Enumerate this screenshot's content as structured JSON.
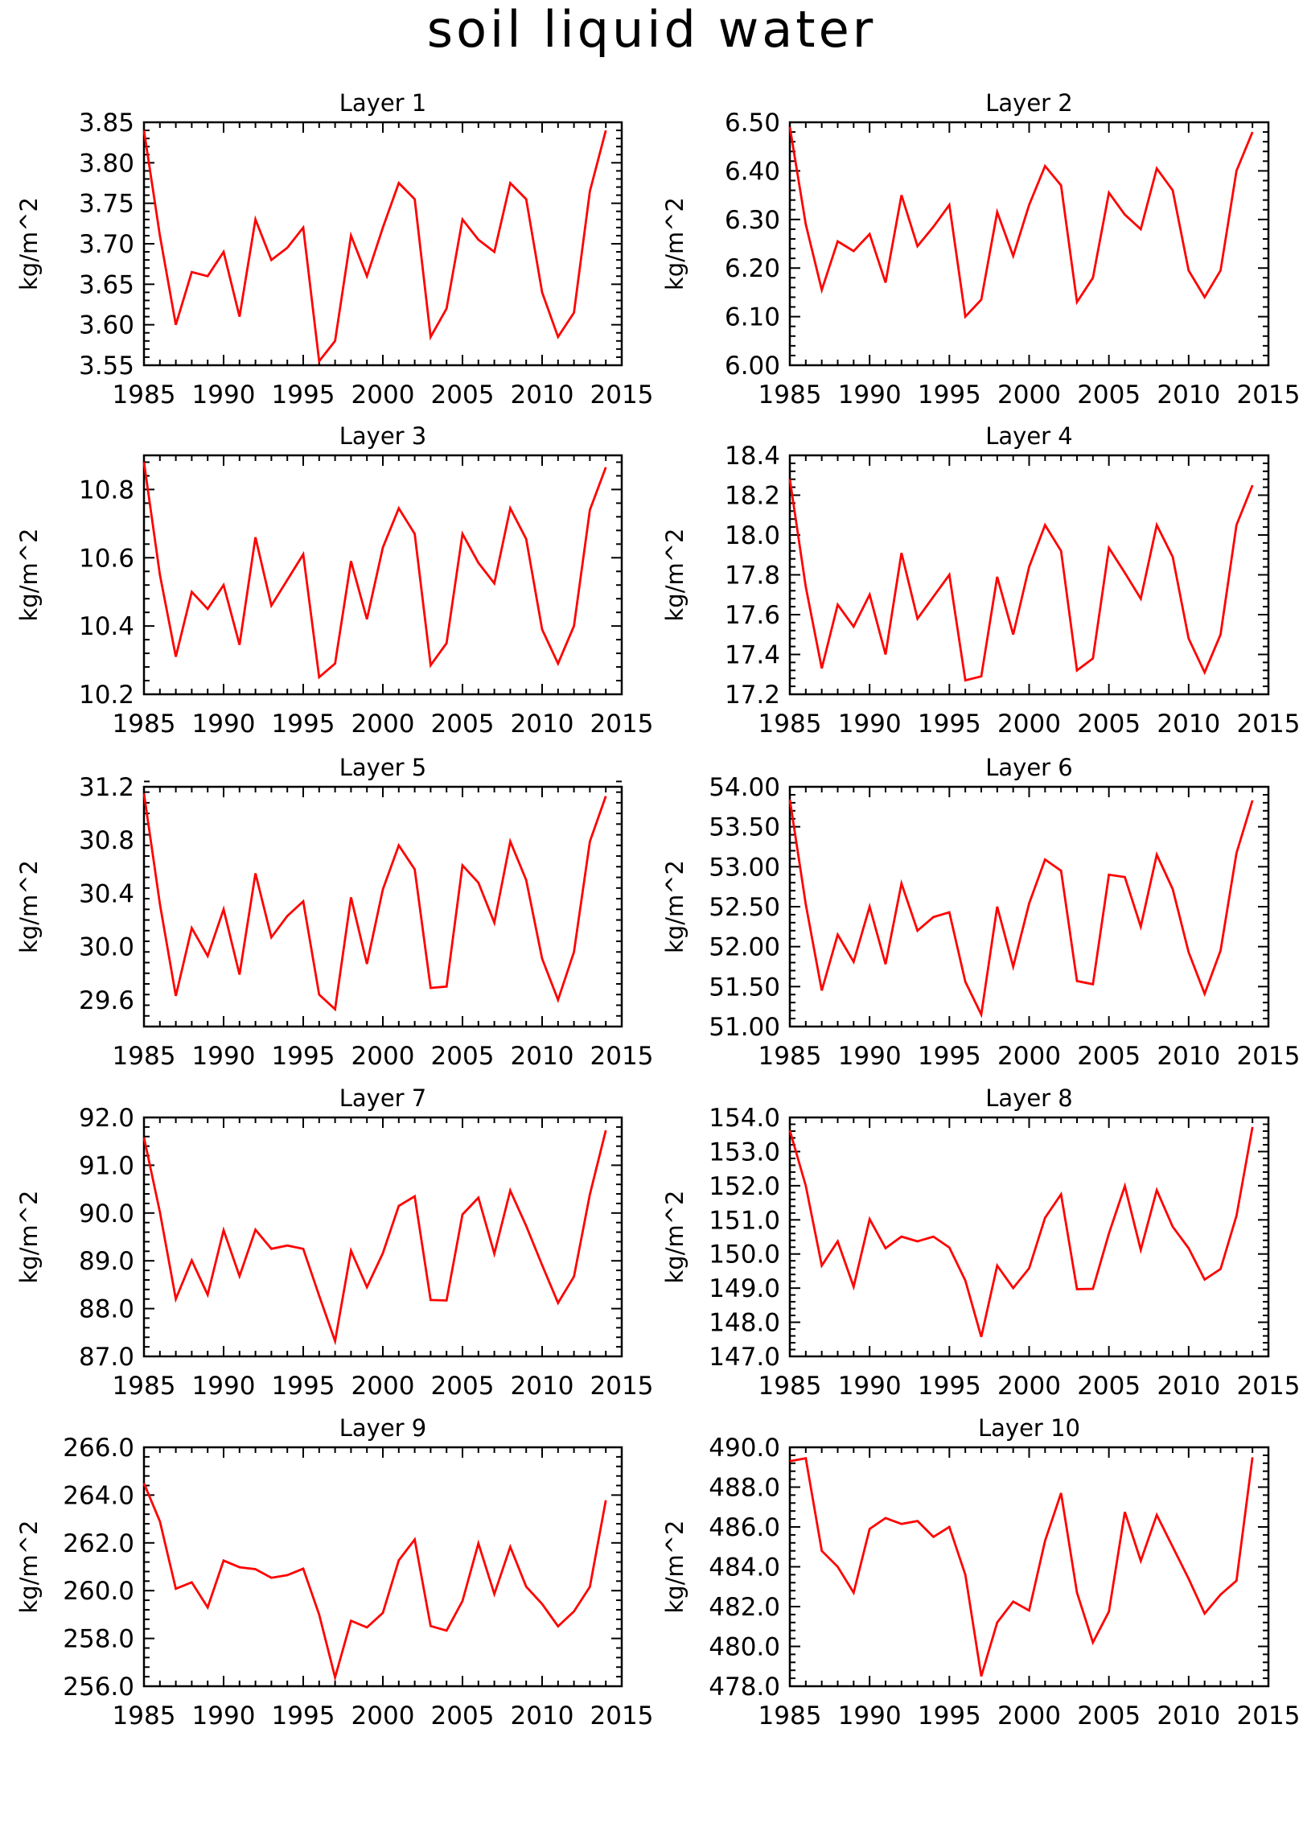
{
  "title": "soil liquid water",
  "colors": {
    "line": "#ff0000",
    "axis": "#000000",
    "background": "#ffffff"
  },
  "chart_data": [
    {
      "type": "line",
      "title": "Layer 1",
      "ylabel": "kg/m^2",
      "xlim": [
        1985,
        2015
      ],
      "ylim": [
        3.55,
        3.85
      ],
      "xticks": [
        1985,
        1990,
        1995,
        2000,
        2005,
        2010,
        2015
      ],
      "yticks": [
        3.55,
        3.6,
        3.65,
        3.7,
        3.75,
        3.8,
        3.85
      ],
      "ytick_labels": [
        "3.55",
        "3.60",
        "3.65",
        "3.70",
        "3.75",
        "3.80",
        "3.85"
      ],
      "x": [
        1985,
        1986,
        1987,
        1988,
        1989,
        1990,
        1991,
        1992,
        1993,
        1994,
        1995,
        1996,
        1997,
        1998,
        1999,
        2000,
        2001,
        2002,
        2003,
        2004,
        2005,
        2006,
        2007,
        2008,
        2009,
        2010,
        2011,
        2012,
        2013,
        2014
      ],
      "values": [
        3.84,
        3.71,
        3.6,
        3.665,
        3.66,
        3.69,
        3.61,
        3.73,
        3.68,
        3.695,
        3.72,
        3.555,
        3.58,
        3.71,
        3.66,
        3.72,
        3.775,
        3.755,
        3.585,
        3.62,
        3.73,
        3.705,
        3.69,
        3.775,
        3.755,
        3.64,
        3.585,
        3.615,
        3.765,
        3.84
      ]
    },
    {
      "type": "line",
      "title": "Layer 2",
      "ylabel": "kg/m^2",
      "xlim": [
        1985,
        2015
      ],
      "ylim": [
        6.0,
        6.5
      ],
      "xticks": [
        1985,
        1990,
        1995,
        2000,
        2005,
        2010,
        2015
      ],
      "yticks": [
        6.0,
        6.1,
        6.2,
        6.3,
        6.4,
        6.5
      ],
      "ytick_labels": [
        "6.00",
        "6.10",
        "6.20",
        "6.30",
        "6.40",
        "6.50"
      ],
      "x": [
        1985,
        1986,
        1987,
        1988,
        1989,
        1990,
        1991,
        1992,
        1993,
        1994,
        1995,
        1996,
        1997,
        1998,
        1999,
        2000,
        2001,
        2002,
        2003,
        2004,
        2005,
        2006,
        2007,
        2008,
        2009,
        2010,
        2011,
        2012,
        2013,
        2014
      ],
      "values": [
        6.49,
        6.29,
        6.155,
        6.255,
        6.235,
        6.27,
        6.17,
        6.35,
        6.245,
        6.285,
        6.33,
        6.1,
        6.135,
        6.315,
        6.225,
        6.33,
        6.41,
        6.37,
        6.13,
        6.18,
        6.355,
        6.31,
        6.28,
        6.405,
        6.36,
        6.195,
        6.14,
        6.195,
        6.4,
        6.48
      ]
    },
    {
      "type": "line",
      "title": "Layer 3",
      "ylabel": "kg/m^2",
      "xlim": [
        1985,
        2015
      ],
      "ylim": [
        10.2,
        10.9
      ],
      "xticks": [
        1985,
        1990,
        1995,
        2000,
        2005,
        2010,
        2015
      ],
      "yticks": [
        10.2,
        10.4,
        10.6,
        10.8
      ],
      "ytick_labels": [
        "10.2",
        "10.4",
        "10.6",
        "10.8"
      ],
      "x": [
        1985,
        1986,
        1987,
        1988,
        1989,
        1990,
        1991,
        1992,
        1993,
        1994,
        1995,
        1996,
        1997,
        1998,
        1999,
        2000,
        2001,
        2002,
        2003,
        2004,
        2005,
        2006,
        2007,
        2008,
        2009,
        2010,
        2011,
        2012,
        2013,
        2014
      ],
      "values": [
        10.88,
        10.55,
        10.31,
        10.5,
        10.45,
        10.52,
        10.345,
        10.66,
        10.46,
        10.535,
        10.61,
        10.25,
        10.29,
        10.59,
        10.42,
        10.63,
        10.745,
        10.67,
        10.285,
        10.35,
        10.67,
        10.585,
        10.525,
        10.745,
        10.655,
        10.39,
        10.29,
        10.4,
        10.74,
        10.865
      ]
    },
    {
      "type": "line",
      "title": "Layer 4",
      "ylabel": "kg/m^2",
      "xlim": [
        1985,
        2015
      ],
      "ylim": [
        17.2,
        18.4
      ],
      "xticks": [
        1985,
        1990,
        1995,
        2000,
        2005,
        2010,
        2015
      ],
      "yticks": [
        17.2,
        17.4,
        17.6,
        17.8,
        18.0,
        18.2,
        18.4
      ],
      "ytick_labels": [
        "17.2",
        "17.4",
        "17.6",
        "17.8",
        "18.0",
        "18.2",
        "18.4"
      ],
      "x": [
        1985,
        1986,
        1987,
        1988,
        1989,
        1990,
        1991,
        1992,
        1993,
        1994,
        1995,
        1996,
        1997,
        1998,
        1999,
        2000,
        2001,
        2002,
        2003,
        2004,
        2005,
        2006,
        2007,
        2008,
        2009,
        2010,
        2011,
        2012,
        2013,
        2014
      ],
      "values": [
        18.28,
        17.74,
        17.33,
        17.65,
        17.54,
        17.7,
        17.4,
        17.91,
        17.58,
        17.69,
        17.8,
        17.27,
        17.29,
        17.79,
        17.5,
        17.84,
        18.05,
        17.92,
        17.32,
        17.38,
        17.935,
        17.81,
        17.68,
        18.05,
        17.89,
        17.48,
        17.31,
        17.5,
        18.05,
        18.25
      ]
    },
    {
      "type": "line",
      "title": "Layer 5",
      "ylabel": "kg/m^2",
      "xlim": [
        1985,
        2015
      ],
      "ylim": [
        29.4,
        31.2
      ],
      "xticks": [
        1985,
        1990,
        1995,
        2000,
        2005,
        2010,
        2015
      ],
      "yticks": [
        29.6,
        30.0,
        30.4,
        30.8,
        31.2
      ],
      "ytick_labels": [
        "29.6",
        "30.0",
        "30.4",
        "30.8",
        "31.2"
      ],
      "x": [
        1985,
        1986,
        1987,
        1988,
        1989,
        1990,
        1991,
        1992,
        1993,
        1994,
        1995,
        1996,
        1997,
        1998,
        1999,
        2000,
        2001,
        2002,
        2003,
        2004,
        2005,
        2006,
        2007,
        2008,
        2009,
        2010,
        2011,
        2012,
        2013,
        2014
      ],
      "values": [
        31.15,
        30.32,
        29.63,
        30.14,
        29.93,
        30.28,
        29.79,
        30.55,
        30.07,
        30.23,
        30.34,
        29.64,
        29.53,
        30.37,
        29.87,
        30.43,
        30.76,
        30.58,
        29.69,
        29.7,
        30.61,
        30.48,
        30.18,
        30.79,
        30.5,
        29.91,
        29.6,
        29.96,
        30.79,
        31.13
      ]
    },
    {
      "type": "line",
      "title": "Layer 6",
      "ylabel": "kg/m^2",
      "xlim": [
        1985,
        2015
      ],
      "ylim": [
        51.0,
        54.0
      ],
      "xticks": [
        1985,
        1990,
        1995,
        2000,
        2005,
        2010,
        2015
      ],
      "yticks": [
        51.0,
        51.5,
        52.0,
        52.5,
        53.0,
        53.5,
        54.0
      ],
      "ytick_labels": [
        "51.00",
        "51.50",
        "52.00",
        "52.50",
        "53.00",
        "53.50",
        "54.00"
      ],
      "x": [
        1985,
        1986,
        1987,
        1988,
        1989,
        1990,
        1991,
        1992,
        1993,
        1994,
        1995,
        1996,
        1997,
        1998,
        1999,
        2000,
        2001,
        2002,
        2003,
        2004,
        2005,
        2006,
        2007,
        2008,
        2009,
        2010,
        2011,
        2012,
        2013,
        2014
      ],
      "values": [
        53.84,
        52.53,
        51.45,
        52.15,
        51.81,
        52.5,
        51.78,
        52.79,
        52.2,
        52.37,
        52.43,
        51.56,
        51.15,
        52.5,
        51.75,
        52.54,
        53.09,
        52.95,
        51.57,
        51.53,
        52.9,
        52.87,
        52.25,
        53.15,
        52.72,
        51.93,
        51.41,
        51.95,
        53.17,
        53.83
      ]
    },
    {
      "type": "line",
      "title": "Layer 7",
      "ylabel": "kg/m^2",
      "xlim": [
        1985,
        2015
      ],
      "ylim": [
        87.0,
        92.0
      ],
      "xticks": [
        1985,
        1990,
        1995,
        2000,
        2005,
        2010,
        2015
      ],
      "yticks": [
        87.0,
        88.0,
        89.0,
        90.0,
        91.0,
        92.0
      ],
      "ytick_labels": [
        "87.0",
        "88.0",
        "89.0",
        "90.0",
        "91.0",
        "92.0"
      ],
      "x": [
        1985,
        1986,
        1987,
        1988,
        1989,
        1990,
        1991,
        1992,
        1993,
        1994,
        1995,
        1996,
        1997,
        1998,
        1999,
        2000,
        2001,
        2002,
        2003,
        2004,
        2005,
        2006,
        2007,
        2008,
        2009,
        2010,
        2011,
        2012,
        2013,
        2014
      ],
      "values": [
        91.58,
        90.02,
        88.2,
        89.01,
        88.29,
        89.64,
        88.68,
        89.65,
        89.25,
        89.32,
        89.25,
        88.27,
        87.32,
        89.21,
        88.45,
        89.16,
        90.15,
        90.35,
        88.18,
        88.17,
        89.97,
        90.32,
        89.15,
        90.47,
        89.73,
        88.91,
        88.12,
        88.67,
        90.39,
        91.73
      ]
    },
    {
      "type": "line",
      "title": "Layer 8",
      "ylabel": "kg/m^2",
      "xlim": [
        1985,
        2015
      ],
      "ylim": [
        147.0,
        154.0
      ],
      "xticks": [
        1985,
        1990,
        1995,
        2000,
        2005,
        2010,
        2015
      ],
      "yticks": [
        147.0,
        148.0,
        149.0,
        150.0,
        151.0,
        152.0,
        153.0,
        154.0
      ],
      "ytick_labels": [
        "147.0",
        "148.0",
        "149.0",
        "150.0",
        "151.0",
        "152.0",
        "153.0",
        "154.0"
      ],
      "x": [
        1985,
        1986,
        1987,
        1988,
        1989,
        1990,
        1991,
        1992,
        1993,
        1994,
        1995,
        1996,
        1997,
        1998,
        1999,
        2000,
        2001,
        2002,
        2003,
        2004,
        2005,
        2006,
        2007,
        2008,
        2009,
        2010,
        2011,
        2012,
        2013,
        2014
      ],
      "values": [
        153.62,
        152.0,
        149.66,
        150.37,
        149.04,
        151.02,
        150.17,
        150.51,
        150.37,
        150.51,
        150.19,
        149.22,
        147.57,
        149.66,
        149.0,
        149.58,
        151.06,
        151.75,
        148.97,
        148.98,
        150.6,
        151.99,
        150.12,
        151.87,
        150.8,
        150.17,
        149.25,
        149.56,
        151.12,
        153.72
      ]
    },
    {
      "type": "line",
      "title": "Layer 9",
      "ylabel": "kg/m^2",
      "xlim": [
        1985,
        2015
      ],
      "ylim": [
        256.0,
        266.0
      ],
      "xticks": [
        1985,
        1990,
        1995,
        2000,
        2005,
        2010,
        2015
      ],
      "yticks": [
        256.0,
        258.0,
        260.0,
        262.0,
        264.0,
        266.0
      ],
      "ytick_labels": [
        "256.0",
        "258.0",
        "260.0",
        "262.0",
        "264.0",
        "266.0"
      ],
      "x": [
        1985,
        1986,
        1987,
        1988,
        1989,
        1990,
        1991,
        1992,
        1993,
        1994,
        1995,
        1996,
        1997,
        1998,
        1999,
        2000,
        2001,
        2002,
        2003,
        2004,
        2005,
        2006,
        2007,
        2008,
        2009,
        2010,
        2011,
        2012,
        2013,
        2014
      ],
      "values": [
        264.49,
        262.9,
        260.08,
        260.35,
        259.3,
        261.26,
        260.98,
        260.9,
        260.54,
        260.65,
        260.92,
        259.0,
        256.37,
        258.74,
        258.46,
        259.07,
        261.27,
        262.14,
        258.52,
        258.33,
        259.57,
        261.98,
        259.86,
        261.83,
        260.17,
        259.44,
        258.51,
        259.13,
        260.16,
        263.78
      ]
    },
    {
      "type": "line",
      "title": "Layer 10",
      "ylabel": "kg/m^2",
      "xlim": [
        1985,
        2015
      ],
      "ylim": [
        478.0,
        490.0
      ],
      "xticks": [
        1985,
        1990,
        1995,
        2000,
        2005,
        2010,
        2015
      ],
      "yticks": [
        478.0,
        480.0,
        482.0,
        484.0,
        486.0,
        488.0,
        490.0
      ],
      "ytick_labels": [
        "478.0",
        "480.0",
        "482.0",
        "484.0",
        "486.0",
        "488.0",
        "490.0"
      ],
      "x": [
        1985,
        1986,
        1987,
        1988,
        1989,
        1990,
        1991,
        1992,
        1993,
        1994,
        1995,
        1996,
        1997,
        1998,
        1999,
        2000,
        2001,
        2002,
        2003,
        2004,
        2005,
        2006,
        2007,
        2008,
        2009,
        2010,
        2011,
        2012,
        2013,
        2014
      ],
      "values": [
        489.3,
        489.45,
        484.8,
        484.0,
        482.7,
        485.9,
        486.45,
        486.15,
        486.3,
        485.5,
        486.0,
        483.6,
        478.5,
        481.2,
        482.25,
        481.8,
        485.3,
        487.7,
        482.7,
        480.2,
        481.75,
        486.75,
        484.3,
        486.6,
        485.0,
        483.4,
        481.65,
        482.6,
        483.3,
        489.5
      ]
    }
  ]
}
